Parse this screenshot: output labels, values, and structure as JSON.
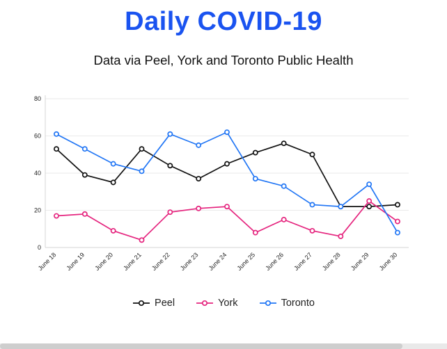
{
  "header": {
    "title": "Daily COVID-19",
    "subtitle": "Data via Peel, York and Toronto Public Health",
    "title_color": "#1a53f0"
  },
  "chart_data": {
    "type": "line",
    "title": "Daily COVID-19",
    "xlabel": "",
    "ylabel": "",
    "categories": [
      "June 18",
      "June 19",
      "June 20",
      "June 21",
      "June 22",
      "June 23",
      "June 24",
      "June 25",
      "June 26",
      "June 27",
      "June 28",
      "June 29",
      "June 30"
    ],
    "series": [
      {
        "name": "Peel",
        "color": "#111111",
        "values": [
          53,
          39,
          35,
          53,
          44,
          37,
          45,
          51,
          56,
          50,
          22,
          22,
          23
        ]
      },
      {
        "name": "York",
        "color": "#e5247e",
        "values": [
          17,
          18,
          9,
          4,
          19,
          21,
          22,
          8,
          15,
          9,
          6,
          25,
          14
        ]
      },
      {
        "name": "Toronto",
        "color": "#2176f5",
        "values": [
          61,
          53,
          45,
          41,
          61,
          55,
          62,
          37,
          33,
          23,
          22,
          34,
          8
        ]
      }
    ],
    "ylim": [
      0,
      80
    ],
    "yticks": [
      0,
      20,
      40,
      60,
      80
    ],
    "grid": true,
    "legend_position": "bottom",
    "marker": "open-circle"
  }
}
